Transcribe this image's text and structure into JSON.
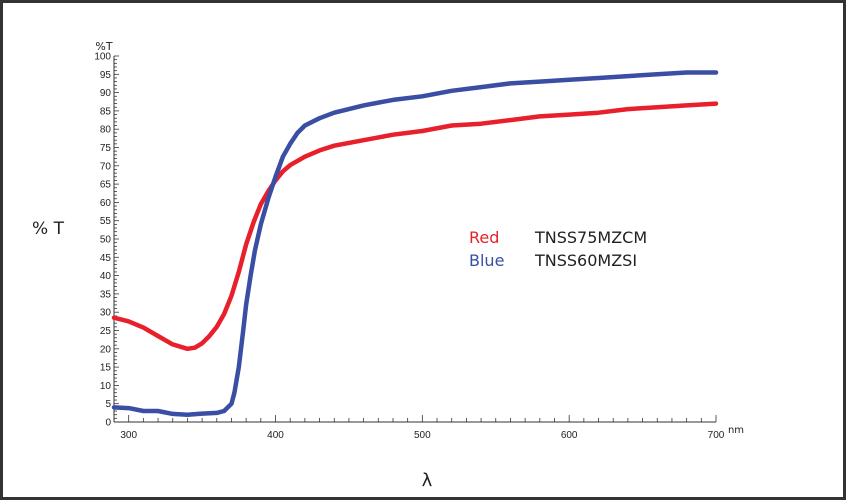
{
  "chart_data": {
    "type": "line",
    "ylabel": "% T",
    "y_unit_label": "%T",
    "xlabel": "λ",
    "x_unit_label": "nm",
    "xlim": [
      290,
      700
    ],
    "ylim": [
      0,
      100
    ],
    "x_major_ticks": [
      300,
      400,
      500,
      600,
      700
    ],
    "y_ticks": [
      0,
      5,
      10,
      15,
      20,
      25,
      30,
      35,
      40,
      45,
      50,
      55,
      60,
      65,
      70,
      75,
      80,
      85,
      90,
      95,
      100
    ],
    "grid": false,
    "legend_position": "center-right",
    "series": [
      {
        "name": "Red",
        "product": "TNSS75MZCM",
        "color": "#e8202b",
        "x": [
          290,
          300,
          310,
          320,
          330,
          340,
          345,
          350,
          355,
          360,
          365,
          370,
          375,
          380,
          385,
          390,
          395,
          400,
          405,
          410,
          420,
          430,
          440,
          460,
          480,
          500,
          520,
          540,
          560,
          580,
          600,
          620,
          640,
          660,
          680,
          700
        ],
        "y": [
          28.5,
          27.5,
          25.8,
          23.5,
          21.2,
          20.0,
          20.3,
          21.5,
          23.5,
          26.0,
          29.5,
          34.5,
          41.0,
          48.5,
          54.5,
          59.5,
          63.0,
          66.0,
          68.5,
          70.2,
          72.5,
          74.2,
          75.5,
          77.0,
          78.5,
          79.5,
          81.0,
          81.5,
          82.5,
          83.5,
          84.0,
          84.5,
          85.5,
          86.0,
          86.5,
          87.0
        ]
      },
      {
        "name": "Blue",
        "product": "TNSS60MZSI",
        "color": "#3a4ea3",
        "x": [
          290,
          300,
          310,
          320,
          330,
          340,
          350,
          360,
          365,
          370,
          372,
          375,
          378,
          380,
          383,
          386,
          390,
          395,
          400,
          405,
          410,
          415,
          420,
          430,
          440,
          460,
          480,
          500,
          520,
          540,
          560,
          580,
          600,
          620,
          640,
          660,
          680,
          700
        ],
        "y": [
          4.0,
          3.8,
          3.0,
          3.0,
          2.2,
          2.0,
          2.3,
          2.5,
          3.0,
          5.0,
          8.0,
          15.0,
          25.0,
          32.0,
          40.0,
          47.0,
          54.0,
          61.0,
          67.0,
          72.5,
          76.0,
          79.0,
          81.0,
          83.0,
          84.5,
          86.5,
          88.0,
          89.0,
          90.5,
          91.5,
          92.5,
          93.0,
          93.5,
          94.0,
          94.5,
          95.0,
          95.5,
          95.5
        ]
      }
    ]
  }
}
